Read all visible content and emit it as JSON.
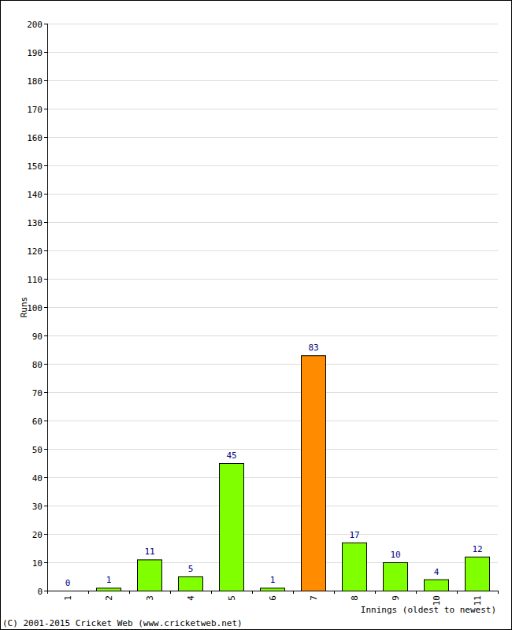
{
  "chart_data": {
    "type": "bar",
    "categories": [
      "1",
      "2",
      "3",
      "4",
      "5",
      "6",
      "7",
      "8",
      "9",
      "10",
      "11"
    ],
    "values": [
      0,
      1,
      11,
      5,
      45,
      1,
      83,
      17,
      10,
      4,
      12
    ],
    "colors": [
      "#80ff00",
      "#80ff00",
      "#80ff00",
      "#80ff00",
      "#80ff00",
      "#80ff00",
      "#ff8c00",
      "#80ff00",
      "#80ff00",
      "#80ff00",
      "#80ff00"
    ],
    "ylim": [
      0,
      200
    ],
    "yticks": [
      0,
      10,
      20,
      30,
      40,
      50,
      60,
      70,
      80,
      90,
      100,
      110,
      120,
      130,
      140,
      150,
      160,
      170,
      180,
      190,
      200
    ],
    "grid": true,
    "data_labels": true,
    "y_label": "Runs",
    "x_label": "Innings (oldest to newest)",
    "annotations": [
      "(C) 2001-2015 Cricket Web (www.cricketweb.net)"
    ]
  }
}
